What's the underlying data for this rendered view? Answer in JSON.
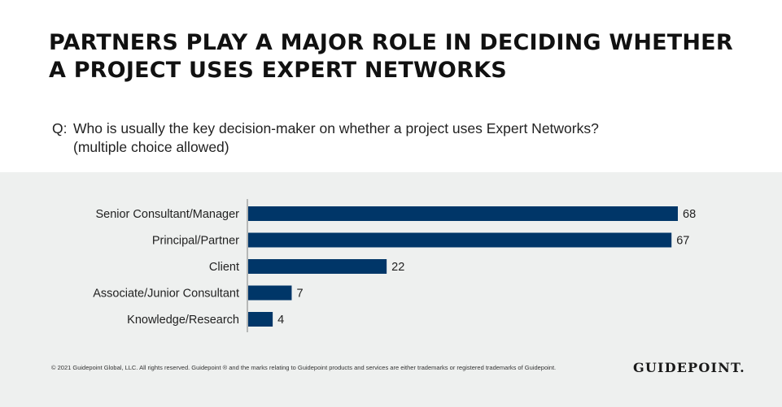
{
  "title": "PARTNERS PLAY A MAJOR ROLE IN DECIDING WHETHER A PROJECT USES EXPERT NETWORKS",
  "question": {
    "prefix": "Q:",
    "text_line1": "Who is usually the key decision-maker on whether a project uses Expert Networks?",
    "text_line2": "(multiple choice allowed)"
  },
  "footer": {
    "copyright": "© 2021 Guidepoint Global, LLC. All rights reserved. Guidepoint ® and the marks relating to Guidepoint products and services are either trademarks or registered trademarks of Guidepoint.",
    "logo": "GUIDEPOINT."
  },
  "colors": {
    "bar": "#003668",
    "panel_background": "#eef0ef",
    "axis": "#7f7f7f"
  },
  "chart_data": {
    "type": "bar",
    "orientation": "horizontal",
    "categories": [
      "Senior Consultant/Manager",
      "Principal/Partner",
      "Client",
      "Associate/Junior Consultant",
      "Knowledge/Research"
    ],
    "values": [
      68,
      67,
      22,
      7,
      4
    ],
    "data_labels": [
      "68",
      "67",
      "22",
      "7",
      "4"
    ],
    "xlim": [
      0,
      68
    ],
    "grid": false,
    "legend": "none"
  }
}
